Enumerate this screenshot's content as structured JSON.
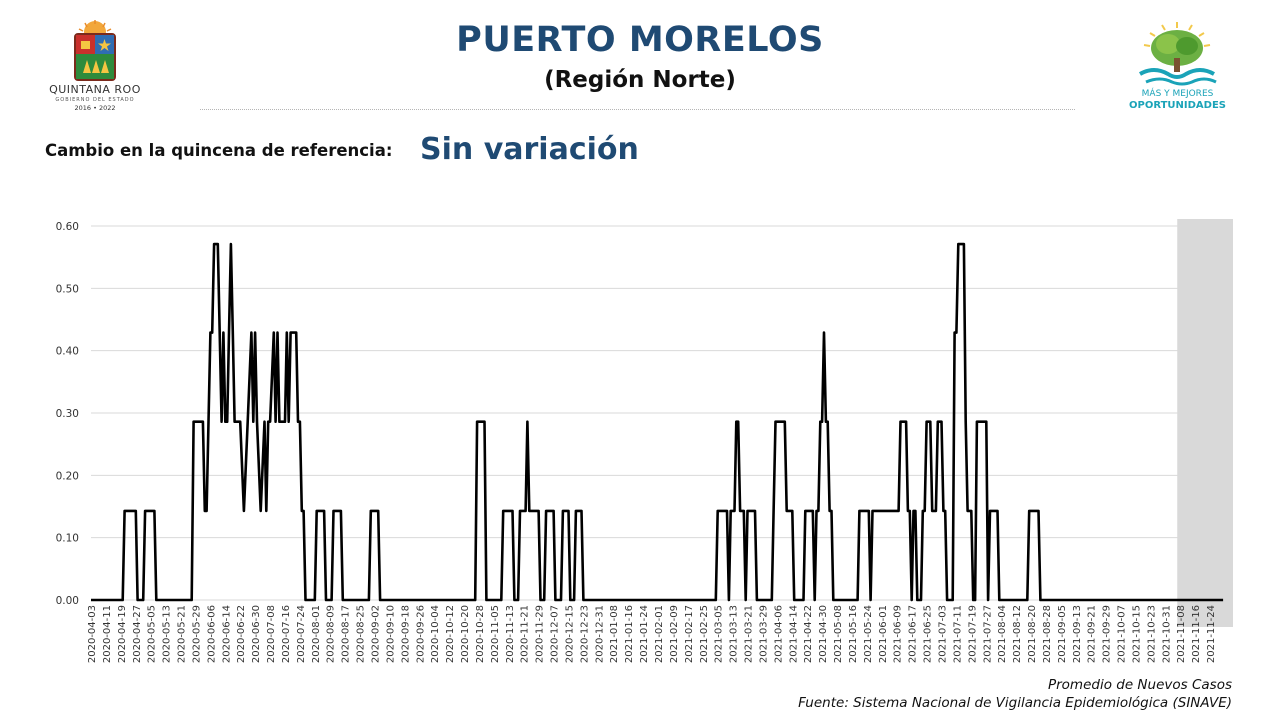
{
  "header": {
    "title": "PUERTO MORELOS",
    "subtitle": "(Región Norte)",
    "change_label": "Cambio en la quincena de referencia:",
    "change_value": "Sin variación"
  },
  "logo_left": {
    "name": "QUINTANA ROO",
    "government": "GOBIERNO DEL ESTADO",
    "years": "2016 • 2022"
  },
  "logo_right": {
    "slogan_line1": "MÁS Y MEJORES",
    "slogan_line2": "OPORTUNIDADES"
  },
  "footer": {
    "metric": "Promedio de Nuevos Casos",
    "source": "Fuente: Sistema Nacional de Vigilancia Epidemiológica (SINAVE)"
  },
  "colors": {
    "title": "#1f4a73",
    "line": "#000000",
    "shaded_region": "#d9d9d9",
    "gridline": "#d9d9d9",
    "slogan": "#1aa3b8"
  },
  "chart_data": {
    "type": "line",
    "title": "",
    "xlabel": "",
    "ylabel": "",
    "ylim": [
      0,
      0.6
    ],
    "y_ticks": [
      "0.00",
      "0.10",
      "0.20",
      "0.30",
      "0.40",
      "0.50",
      "0.60"
    ],
    "x_ticks": [
      "2020-04-03",
      "2020-04-11",
      "2020-04-19",
      "2020-04-27",
      "2020-05-05",
      "2020-05-13",
      "2020-05-21",
      "2020-05-29",
      "2020-06-06",
      "2020-06-14",
      "2020-06-22",
      "2020-06-30",
      "2020-07-08",
      "2020-07-16",
      "2020-07-24",
      "2020-08-01",
      "2020-08-09",
      "2020-08-17",
      "2020-08-25",
      "2020-09-02",
      "2020-09-10",
      "2020-09-18",
      "2020-09-26",
      "2020-10-04",
      "2020-10-12",
      "2020-10-20",
      "2020-10-28",
      "2020-11-05",
      "2020-11-13",
      "2020-11-21",
      "2020-11-29",
      "2020-12-07",
      "2020-12-15",
      "2020-12-23",
      "2020-12-31",
      "2021-01-08",
      "2021-01-16",
      "2021-01-24",
      "2021-02-01",
      "2021-02-09",
      "2021-02-17",
      "2021-02-25",
      "2021-03-05",
      "2021-03-13",
      "2021-03-21",
      "2021-03-29",
      "2021-04-06",
      "2021-04-14",
      "2021-04-22",
      "2021-04-30",
      "2021-05-08",
      "2021-05-16",
      "2021-05-24",
      "2021-06-01",
      "2021-06-09",
      "2021-06-17",
      "2021-06-25",
      "2021-07-03",
      "2021-07-11",
      "2021-07-19",
      "2021-07-27",
      "2021-08-04",
      "2021-08-12",
      "2021-08-20",
      "2021-08-28",
      "2021-09-05",
      "2021-09-13",
      "2021-09-21",
      "2021-09-29",
      "2021-10-07",
      "2021-10-15",
      "2021-10-23",
      "2021-10-31",
      "2021-11-08",
      "2021-11-16",
      "2021-11-24"
    ],
    "shaded_from": "2021-11-08",
    "shaded_to": "2021-12-01",
    "series": [
      {
        "values": [
          [
            "2020-04-03",
            0.0
          ],
          [
            "2020-04-20",
            0.0
          ],
          [
            "2020-04-21",
            0.143
          ],
          [
            "2020-04-27",
            0.143
          ],
          [
            "2020-04-28",
            0.0
          ],
          [
            "2020-05-01",
            0.0
          ],
          [
            "2020-05-02",
            0.143
          ],
          [
            "2020-05-07",
            0.143
          ],
          [
            "2020-05-08",
            0.0
          ],
          [
            "2020-05-27",
            0.0
          ],
          [
            "2020-05-28",
            0.286
          ],
          [
            "2020-06-02",
            0.286
          ],
          [
            "2020-06-03",
            0.143
          ],
          [
            "2020-06-04",
            0.143
          ],
          [
            "2020-06-06",
            0.429
          ],
          [
            "2020-06-07",
            0.429
          ],
          [
            "2020-06-08",
            0.571
          ],
          [
            "2020-06-10",
            0.571
          ],
          [
            "2020-06-12",
            0.286
          ],
          [
            "2020-06-13",
            0.429
          ],
          [
            "2020-06-14",
            0.286
          ],
          [
            "2020-06-15",
            0.286
          ],
          [
            "2020-06-16",
            0.429
          ],
          [
            "2020-06-17",
            0.571
          ],
          [
            "2020-06-18",
            0.429
          ],
          [
            "2020-06-19",
            0.286
          ],
          [
            "2020-06-22",
            0.286
          ],
          [
            "2020-06-24",
            0.143
          ],
          [
            "2020-06-26",
            0.286
          ],
          [
            "2020-06-28",
            0.429
          ],
          [
            "2020-06-29",
            0.286
          ],
          [
            "2020-06-30",
            0.429
          ],
          [
            "2020-07-01",
            0.286
          ],
          [
            "2020-07-03",
            0.143
          ],
          [
            "2020-07-05",
            0.286
          ],
          [
            "2020-07-06",
            0.143
          ],
          [
            "2020-07-07",
            0.286
          ],
          [
            "2020-07-08",
            0.286
          ],
          [
            "2020-07-10",
            0.429
          ],
          [
            "2020-07-11",
            0.286
          ],
          [
            "2020-07-12",
            0.429
          ],
          [
            "2020-07-13",
            0.286
          ],
          [
            "2020-07-16",
            0.286
          ],
          [
            "2020-07-17",
            0.429
          ],
          [
            "2020-07-18",
            0.286
          ],
          [
            "2020-07-19",
            0.429
          ],
          [
            "2020-07-22",
            0.429
          ],
          [
            "2020-07-23",
            0.286
          ],
          [
            "2020-07-24",
            0.286
          ],
          [
            "2020-07-25",
            0.143
          ],
          [
            "2020-07-26",
            0.143
          ],
          [
            "2020-07-27",
            0.0
          ],
          [
            "2020-08-01",
            0.0
          ],
          [
            "2020-08-02",
            0.143
          ],
          [
            "2020-08-06",
            0.143
          ],
          [
            "2020-08-07",
            0.0
          ],
          [
            "2020-08-10",
            0.0
          ],
          [
            "2020-08-11",
            0.143
          ],
          [
            "2020-08-15",
            0.143
          ],
          [
            "2020-08-16",
            0.0
          ],
          [
            "2020-08-30",
            0.0
          ],
          [
            "2020-08-31",
            0.143
          ],
          [
            "2020-09-04",
            0.143
          ],
          [
            "2020-09-05",
            0.0
          ],
          [
            "2020-10-26",
            0.0
          ],
          [
            "2020-10-27",
            0.286
          ],
          [
            "2020-10-31",
            0.286
          ],
          [
            "2020-11-01",
            0.0
          ],
          [
            "2020-11-09",
            0.0
          ],
          [
            "2020-11-10",
            0.143
          ],
          [
            "2020-11-15",
            0.143
          ],
          [
            "2020-11-16",
            0.0
          ],
          [
            "2020-11-18",
            0.0
          ],
          [
            "2020-11-19",
            0.143
          ],
          [
            "2020-11-22",
            0.143
          ],
          [
            "2020-11-23",
            0.286
          ],
          [
            "2020-11-24",
            0.143
          ],
          [
            "2020-11-29",
            0.143
          ],
          [
            "2020-11-30",
            0.0
          ],
          [
            "2020-12-02",
            0.0
          ],
          [
            "2020-12-03",
            0.143
          ],
          [
            "2020-12-07",
            0.143
          ],
          [
            "2020-12-08",
            0.0
          ],
          [
            "2020-12-11",
            0.0
          ],
          [
            "2020-12-12",
            0.143
          ],
          [
            "2020-12-15",
            0.143
          ],
          [
            "2020-12-16",
            0.0
          ],
          [
            "2020-12-18",
            0.0
          ],
          [
            "2020-12-19",
            0.143
          ],
          [
            "2020-12-22",
            0.143
          ],
          [
            "2020-12-23",
            0.0
          ],
          [
            "2021-03-04",
            0.0
          ],
          [
            "2021-03-05",
            0.143
          ],
          [
            "2021-03-10",
            0.143
          ],
          [
            "2021-03-11",
            0.0
          ],
          [
            "2021-03-12",
            0.143
          ],
          [
            "2021-03-14",
            0.143
          ],
          [
            "2021-03-15",
            0.286
          ],
          [
            "2021-03-16",
            0.286
          ],
          [
            "2021-03-17",
            0.143
          ],
          [
            "2021-03-19",
            0.143
          ],
          [
            "2021-03-20",
            0.0
          ],
          [
            "2021-03-21",
            0.143
          ],
          [
            "2021-03-25",
            0.143
          ],
          [
            "2021-03-26",
            0.0
          ],
          [
            "2021-04-03",
            0.0
          ],
          [
            "2021-04-04",
            0.143
          ],
          [
            "2021-04-05",
            0.286
          ],
          [
            "2021-04-10",
            0.286
          ],
          [
            "2021-04-11",
            0.143
          ],
          [
            "2021-04-14",
            0.143
          ],
          [
            "2021-04-15",
            0.0
          ],
          [
            "2021-04-20",
            0.0
          ],
          [
            "2021-04-21",
            0.143
          ],
          [
            "2021-04-25",
            0.143
          ],
          [
            "2021-04-26",
            0.0
          ],
          [
            "2021-04-27",
            0.143
          ],
          [
            "2021-04-28",
            0.143
          ],
          [
            "2021-04-29",
            0.286
          ],
          [
            "2021-04-30",
            0.286
          ],
          [
            "2021-05-01",
            0.429
          ],
          [
            "2021-05-02",
            0.286
          ],
          [
            "2021-05-03",
            0.286
          ],
          [
            "2021-05-04",
            0.143
          ],
          [
            "2021-05-05",
            0.143
          ],
          [
            "2021-05-06",
            0.0
          ],
          [
            "2021-05-19",
            0.0
          ],
          [
            "2021-05-20",
            0.143
          ],
          [
            "2021-05-25",
            0.143
          ],
          [
            "2021-05-26",
            0.0
          ],
          [
            "2021-05-27",
            0.143
          ],
          [
            "2021-06-10",
            0.143
          ],
          [
            "2021-06-11",
            0.286
          ],
          [
            "2021-06-14",
            0.286
          ],
          [
            "2021-06-15",
            0.143
          ],
          [
            "2021-06-16",
            0.143
          ],
          [
            "2021-06-17",
            0.0
          ],
          [
            "2021-06-18",
            0.143
          ],
          [
            "2021-06-19",
            0.143
          ],
          [
            "2021-06-20",
            0.0
          ],
          [
            "2021-06-22",
            0.0
          ],
          [
            "2021-06-23",
            0.143
          ],
          [
            "2021-06-24",
            0.143
          ],
          [
            "2021-06-25",
            0.286
          ],
          [
            "2021-06-27",
            0.286
          ],
          [
            "2021-06-28",
            0.143
          ],
          [
            "2021-06-30",
            0.143
          ],
          [
            "2021-07-01",
            0.286
          ],
          [
            "2021-07-03",
            0.286
          ],
          [
            "2021-07-04",
            0.143
          ],
          [
            "2021-07-05",
            0.143
          ],
          [
            "2021-07-06",
            0.0
          ],
          [
            "2021-07-09",
            0.0
          ],
          [
            "2021-07-10",
            0.429
          ],
          [
            "2021-07-11",
            0.429
          ],
          [
            "2021-07-12",
            0.571
          ],
          [
            "2021-07-15",
            0.571
          ],
          [
            "2021-07-16",
            0.286
          ],
          [
            "2021-07-17",
            0.143
          ],
          [
            "2021-07-19",
            0.143
          ],
          [
            "2021-07-20",
            0.0
          ],
          [
            "2021-07-21",
            0.0
          ],
          [
            "2021-07-22",
            0.286
          ],
          [
            "2021-07-27",
            0.286
          ],
          [
            "2021-07-28",
            0.0
          ],
          [
            "2021-07-29",
            0.143
          ],
          [
            "2021-08-02",
            0.143
          ],
          [
            "2021-08-03",
            0.0
          ],
          [
            "2021-08-18",
            0.0
          ],
          [
            "2021-08-19",
            0.143
          ],
          [
            "2021-08-24",
            0.143
          ],
          [
            "2021-08-25",
            0.0
          ],
          [
            "2021-12-01",
            0.0
          ]
        ]
      }
    ]
  }
}
